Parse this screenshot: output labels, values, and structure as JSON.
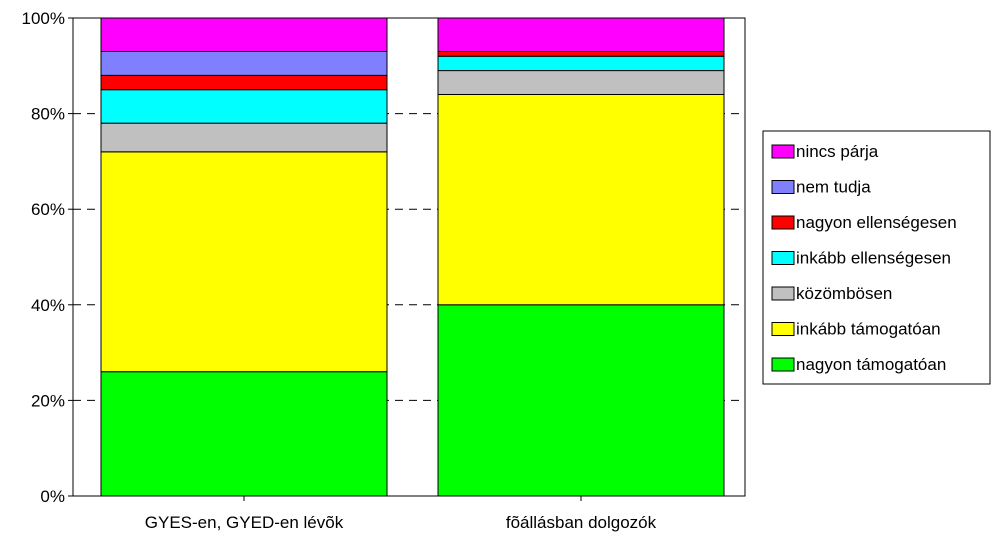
{
  "chart_data": {
    "type": "bar",
    "stacked": true,
    "percent": true,
    "categories": [
      "GYES-en, GYED-en lévõk",
      "fõállásban dolgozók"
    ],
    "series": [
      {
        "name": "nagyon támogatóan",
        "color": "#00ff00",
        "values": [
          26,
          40
        ]
      },
      {
        "name": "inkább támogatóan",
        "color": "#ffff00",
        "values": [
          46,
          44
        ]
      },
      {
        "name": "közömbösen",
        "color": "#c0c0c0",
        "values": [
          6,
          5
        ]
      },
      {
        "name": "inkább ellenségesen",
        "color": "#00ffff",
        "values": [
          7,
          3
        ]
      },
      {
        "name": "nagyon ellenségesen",
        "color": "#ff0000",
        "values": [
          3,
          1
        ]
      },
      {
        "name": "nem tudja",
        "color": "#8080ff",
        "values": [
          5,
          0
        ]
      },
      {
        "name": "nincs párja",
        "color": "#ff00ff",
        "values": [
          7,
          7
        ]
      }
    ],
    "yticks": [
      "0%",
      "20%",
      "40%",
      "60%",
      "80%",
      "100%"
    ],
    "ylim": [
      0,
      100
    ],
    "grid": "dashed horizontal",
    "legend": "right"
  }
}
